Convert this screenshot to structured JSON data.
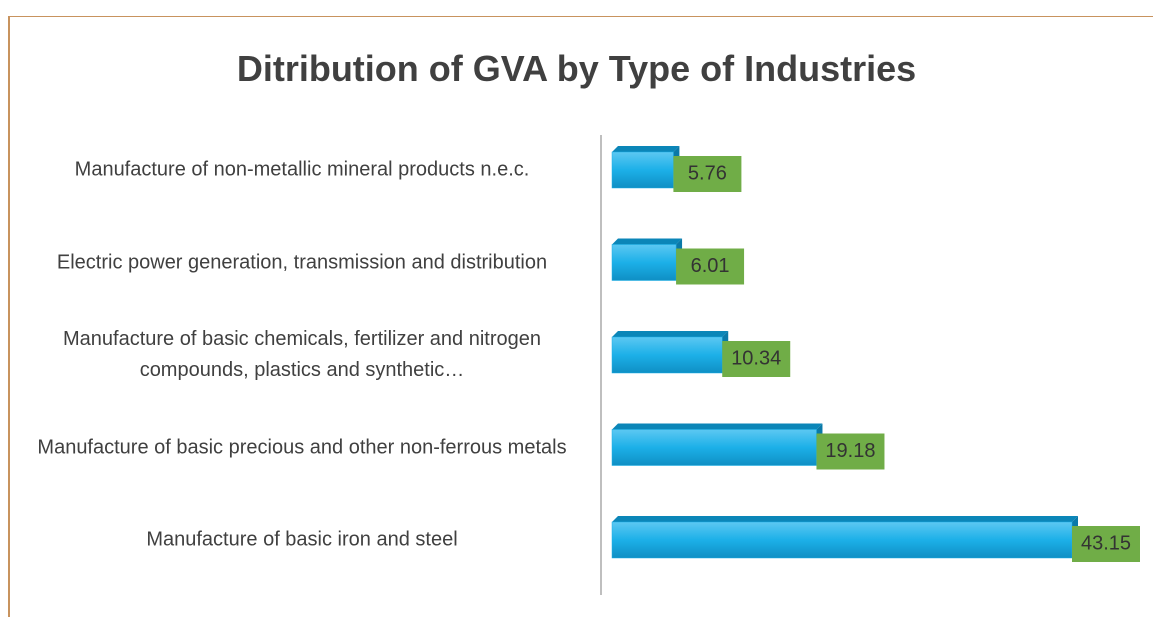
{
  "chart_data": {
    "type": "bar",
    "orientation": "horizontal",
    "title": "Ditribution of GVA by Type of Industries",
    "categories": [
      "Manufacture of non-metallic mineral products n.e.c.",
      "Electric power generation, transmission and distribution",
      "Manufacture of basic chemicals, fertilizer and nitrogen compounds, plastics and synthetic…",
      "Manufacture of basic precious and other non-ferrous metals",
      "Manufacture of basic iron and steel"
    ],
    "values": [
      5.76,
      6.01,
      10.34,
      19.18,
      43.15
    ],
    "color": "#1cb0e8",
    "label_color": "#70ad47"
  }
}
